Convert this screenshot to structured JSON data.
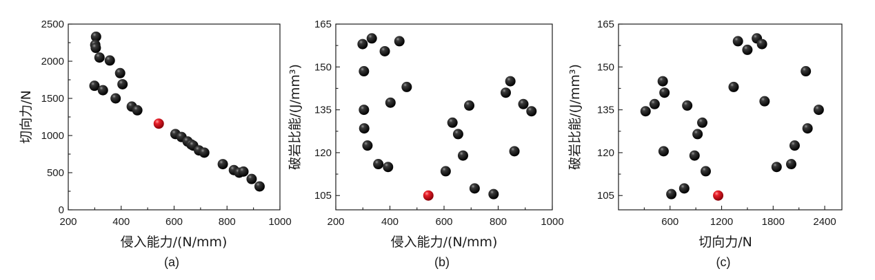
{
  "colors": {
    "point": "#111111",
    "highlight": "#e3141b"
  },
  "chart_data": [
    {
      "type": "scatter",
      "panel": "(a)",
      "xlabel": "侵入能力/(N/mm)",
      "ylabel": "切向力/N",
      "xlim": [
        200,
        1000
      ],
      "ylim": [
        0,
        2500
      ],
      "xticks": [
        200,
        400,
        600,
        800,
        1000
      ],
      "yticks": [
        0,
        500,
        1000,
        1500,
        2000,
        2500
      ],
      "points": [
        [
          305,
          2330
        ],
        [
          302,
          2220
        ],
        [
          304,
          2180
        ],
        [
          318,
          2050
        ],
        [
          357,
          2010
        ],
        [
          396,
          1840
        ],
        [
          405,
          1690
        ],
        [
          299,
          1670
        ],
        [
          331,
          1610
        ],
        [
          379,
          1500
        ],
        [
          440,
          1390
        ],
        [
          461,
          1340
        ],
        [
          605,
          1020
        ],
        [
          628,
          980
        ],
        [
          651,
          920
        ],
        [
          665,
          880
        ],
        [
          672,
          865
        ],
        [
          694,
          800
        ],
        [
          714,
          770
        ],
        [
          784,
          615
        ],
        [
          826,
          535
        ],
        [
          846,
          500
        ],
        [
          862,
          515
        ],
        [
          893,
          415
        ],
        [
          923,
          315
        ]
      ],
      "highlight": [
        [
          542,
          1160
        ]
      ]
    },
    {
      "type": "scatter",
      "panel": "(b)",
      "xlabel": "侵入能力/(N/mm)",
      "ylabel": "破岩比能/(J/mm³)",
      "xlim": [
        200,
        1000
      ],
      "ylim": [
        100,
        165
      ],
      "xticks": [
        200,
        400,
        600,
        800,
        1000
      ],
      "yticks": [
        105,
        120,
        135,
        150,
        165
      ],
      "points": [
        [
          299,
          158
        ],
        [
          333,
          160
        ],
        [
          381,
          155.5
        ],
        [
          435,
          159
        ],
        [
          304,
          148.5
        ],
        [
          462,
          143
        ],
        [
          402,
          137.5
        ],
        [
          304,
          135
        ],
        [
          305,
          128.5
        ],
        [
          317,
          122.5
        ],
        [
          357,
          116
        ],
        [
          393,
          115
        ],
        [
          606,
          113.5
        ],
        [
          631,
          130.5
        ],
        [
          652,
          126.5
        ],
        [
          670,
          119
        ],
        [
          693,
          136.5
        ],
        [
          713,
          107.5
        ],
        [
          783,
          105.5
        ],
        [
          828,
          141
        ],
        [
          845,
          145
        ],
        [
          860,
          120.5
        ],
        [
          893,
          137
        ],
        [
          923,
          134.5
        ]
      ],
      "highlight": [
        [
          542,
          105
        ]
      ]
    },
    {
      "type": "scatter",
      "panel": "(c)",
      "xlabel": "切向力/N",
      "ylabel": "破岩比能/(J/mm³)",
      "xlim": [
        0,
        2600
      ],
      "ylim": [
        100,
        165
      ],
      "xticks": [
        600,
        1200,
        1800,
        2400
      ],
      "yticks": [
        105,
        120,
        135,
        150,
        165
      ],
      "points": [
        [
          315,
          134.5
        ],
        [
          420,
          137
        ],
        [
          515,
          145
        ],
        [
          535,
          141
        ],
        [
          525,
          120.5
        ],
        [
          615,
          105.5
        ],
        [
          765,
          107.5
        ],
        [
          800,
          136.5
        ],
        [
          885,
          119
        ],
        [
          920,
          126.5
        ],
        [
          975,
          130.5
        ],
        [
          1015,
          113.5
        ],
        [
          1340,
          143
        ],
        [
          1390,
          159
        ],
        [
          1500,
          156
        ],
        [
          1610,
          160
        ],
        [
          1670,
          158
        ],
        [
          1700,
          138
        ],
        [
          1840,
          115
        ],
        [
          2010,
          116
        ],
        [
          2050,
          122.5
        ],
        [
          2180,
          148.5
        ],
        [
          2200,
          128.5
        ],
        [
          2330,
          135
        ]
      ],
      "highlight": [
        [
          1160,
          105
        ]
      ]
    }
  ]
}
